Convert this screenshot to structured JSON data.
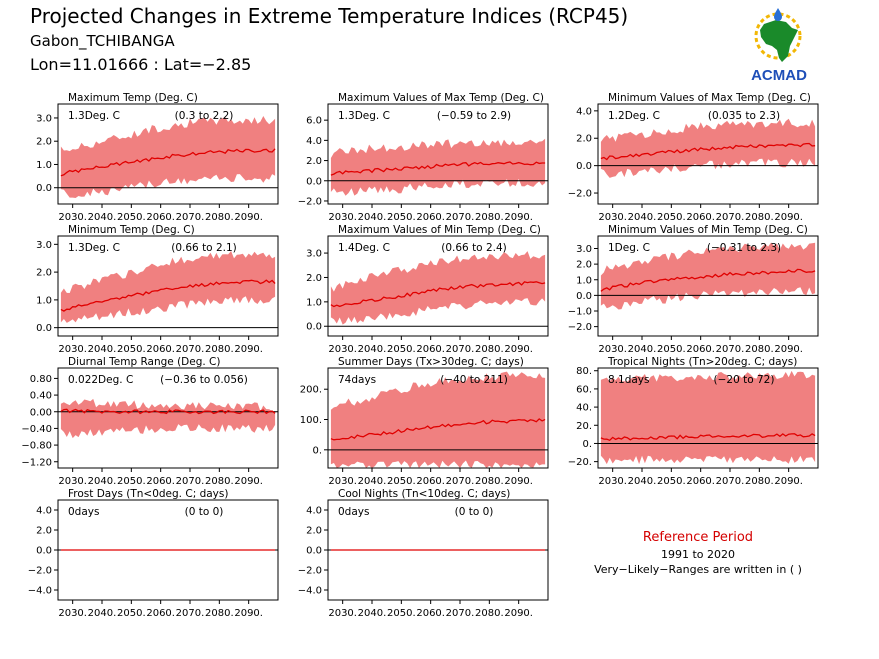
{
  "header": {
    "title": "Projected Changes in Extreme Temperature Indices (RCP45)",
    "location": "Gabon_TCHIBANGA",
    "coords": "Lon=11.01666 : Lat=−2.85"
  },
  "logo": {
    "text": "ACMAD"
  },
  "reference": {
    "title": "Reference Period",
    "years": "1991 to 2020",
    "note": "Very−Likely−Ranges are written in ( )"
  },
  "colors": {
    "band": "#f08080",
    "line": "#e00000"
  },
  "chart_data": [
    {
      "type": "area",
      "title": "Maximum Temp (Deg. C)",
      "value_label": "1.3Deg. C",
      "range_label": "(0.3 to 2.2)",
      "x_ticks": [
        "2030.",
        "2040.",
        "2050.",
        "2060.",
        "2070.",
        "2080.",
        "2090."
      ],
      "y_ticks": [
        "0.0",
        "1.0",
        "2.0",
        "3.0"
      ],
      "y_tick_values": [
        0,
        1,
        2,
        3
      ],
      "ylim": [
        -0.7,
        3.6
      ],
      "xlim": [
        2025,
        2100
      ],
      "anchors": {
        "x": [
          2025,
          2030,
          2040,
          2050,
          2060,
          2070,
          2080,
          2090,
          2100
        ],
        "median": [
          0.55,
          0.7,
          0.9,
          1.1,
          1.3,
          1.45,
          1.55,
          1.6,
          1.6
        ],
        "low": [
          -0.2,
          -0.3,
          -0.2,
          0.0,
          0.2,
          0.3,
          0.4,
          0.4,
          0.4
        ],
        "high": [
          1.6,
          1.7,
          2.0,
          2.3,
          2.6,
          2.8,
          2.9,
          2.9,
          2.9
        ]
      }
    },
    {
      "type": "area",
      "title": "Maximum Values of Max Temp (Deg. C)",
      "value_label": "1.3Deg. C",
      "range_label": "(−0.59 to 2.9)",
      "x_ticks": [
        "2030.",
        "2040.",
        "2050.",
        "2060.",
        "2070.",
        "2080.",
        "2090."
      ],
      "y_ticks": [
        "−2.0",
        "0.0",
        "2.0",
        "4.0",
        "6.0"
      ],
      "y_tick_values": [
        -2,
        0,
        2,
        4,
        6
      ],
      "ylim": [
        -2.3,
        7.6
      ],
      "xlim": [
        2025,
        2100
      ],
      "anchors": {
        "x": [
          2025,
          2030,
          2040,
          2050,
          2060,
          2070,
          2080,
          2090,
          2100
        ],
        "median": [
          0.6,
          0.8,
          1.0,
          1.2,
          1.4,
          1.6,
          1.7,
          1.7,
          1.7
        ],
        "low": [
          -1.0,
          -1.2,
          -1.0,
          -0.8,
          -0.5,
          -0.3,
          -0.2,
          -0.2,
          -0.2
        ],
        "high": [
          2.5,
          3.0,
          3.2,
          3.4,
          3.6,
          3.7,
          3.8,
          3.8,
          3.8
        ]
      }
    },
    {
      "type": "area",
      "title": "Minimum Values of Max Temp (Deg. C)",
      "value_label": "1.2Deg. C",
      "range_label": "(0.035 to 2.3)",
      "x_ticks": [
        "2030.",
        "2040.",
        "2050.",
        "2060.",
        "2070.",
        "2080.",
        "2090."
      ],
      "y_ticks": [
        "−2.0",
        "0.0",
        "2.0",
        "4.0"
      ],
      "y_tick_values": [
        -2,
        0,
        2,
        4
      ],
      "ylim": [
        -2.8,
        4.5
      ],
      "xlim": [
        2025,
        2100
      ],
      "anchors": {
        "x": [
          2025,
          2030,
          2040,
          2050,
          2060,
          2070,
          2080,
          2090,
          2100
        ],
        "median": [
          0.5,
          0.6,
          0.8,
          1.0,
          1.2,
          1.35,
          1.45,
          1.5,
          1.5
        ],
        "low": [
          -0.5,
          -0.6,
          -0.4,
          -0.2,
          0.0,
          0.1,
          0.2,
          0.2,
          0.2
        ],
        "high": [
          1.8,
          2.0,
          2.3,
          2.6,
          2.9,
          3.0,
          3.1,
          3.1,
          3.1
        ]
      }
    },
    {
      "type": "area",
      "title": "Minimum Temp (Deg. C)",
      "value_label": "1.3Deg. C",
      "range_label": "(0.66 to 2.1)",
      "x_ticks": [
        "2030.",
        "2040.",
        "2050.",
        "2060.",
        "2070.",
        "2080.",
        "2090."
      ],
      "y_ticks": [
        "0.0",
        "1.0",
        "2.0",
        "3.0"
      ],
      "y_tick_values": [
        0,
        1,
        2,
        3
      ],
      "ylim": [
        -0.3,
        3.3
      ],
      "xlim": [
        2025,
        2100
      ],
      "anchors": {
        "x": [
          2025,
          2030,
          2040,
          2050,
          2060,
          2070,
          2080,
          2090,
          2100
        ],
        "median": [
          0.6,
          0.75,
          0.95,
          1.15,
          1.35,
          1.5,
          1.6,
          1.65,
          1.65
        ],
        "low": [
          0.2,
          0.25,
          0.4,
          0.55,
          0.7,
          0.85,
          0.95,
          1.0,
          1.0
        ],
        "high": [
          1.2,
          1.4,
          1.7,
          2.0,
          2.3,
          2.5,
          2.6,
          2.6,
          2.6
        ]
      }
    },
    {
      "type": "area",
      "title": "Maximum Values of Min Temp (Deg. C)",
      "value_label": "1.4Deg. C",
      "range_label": "(0.66 to 2.4)",
      "x_ticks": [
        "2030.",
        "2040.",
        "2050.",
        "2060.",
        "2070.",
        "2080.",
        "2090."
      ],
      "y_ticks": [
        "0.0",
        "1.0",
        "2.0",
        "3.0"
      ],
      "y_tick_values": [
        0,
        1,
        2,
        3
      ],
      "ylim": [
        -0.4,
        3.7
      ],
      "xlim": [
        2025,
        2100
      ],
      "anchors": {
        "x": [
          2025,
          2030,
          2040,
          2050,
          2060,
          2070,
          2080,
          2090,
          2100
        ],
        "median": [
          0.8,
          0.9,
          1.05,
          1.25,
          1.45,
          1.6,
          1.7,
          1.75,
          1.75
        ],
        "low": [
          0.2,
          0.2,
          0.35,
          0.5,
          0.7,
          0.85,
          0.95,
          1.0,
          1.0
        ],
        "high": [
          1.5,
          1.7,
          2.0,
          2.3,
          2.6,
          2.8,
          2.9,
          2.9,
          2.9
        ]
      }
    },
    {
      "type": "area",
      "title": "Minimum Values of Min Temp (Deg. C)",
      "value_label": "1Deg. C",
      "range_label": "(−0.31 to 2.3)",
      "x_ticks": [
        "2030.",
        "2040.",
        "2050.",
        "2060.",
        "2070.",
        "2080.",
        "2090."
      ],
      "y_ticks": [
        "−2.0",
        "−1.0",
        "0.0",
        "1.0",
        "2.0",
        "3.0"
      ],
      "y_tick_values": [
        -2,
        -1,
        0,
        1,
        2,
        3
      ],
      "ylim": [
        -2.6,
        3.8
      ],
      "xlim": [
        2025,
        2100
      ],
      "anchors": {
        "x": [
          2025,
          2030,
          2040,
          2050,
          2060,
          2070,
          2080,
          2090,
          2100
        ],
        "median": [
          0.3,
          0.5,
          0.8,
          1.0,
          1.2,
          1.35,
          1.45,
          1.55,
          1.6
        ],
        "low": [
          -0.6,
          -0.7,
          -0.4,
          -0.2,
          0.0,
          0.1,
          0.2,
          0.3,
          0.3
        ],
        "high": [
          1.5,
          1.8,
          2.2,
          2.5,
          2.8,
          3.0,
          3.1,
          3.2,
          3.2
        ]
      }
    },
    {
      "type": "area",
      "title": "Diurnal Temp Range (Deg. C)",
      "value_label": "0.022Deg. C",
      "range_label": "(−0.36 to 0.056)",
      "x_ticks": [
        "2030.",
        "2040.",
        "2050.",
        "2060.",
        "2070.",
        "2080.",
        "2090."
      ],
      "y_ticks": [
        "−1.20",
        "−0.80",
        "−0.40",
        "0.00",
        "0.40",
        "0.80"
      ],
      "y_tick_values": [
        -1.2,
        -0.8,
        -0.4,
        0,
        0.4,
        0.8
      ],
      "ylim": [
        -1.35,
        1.05
      ],
      "xlim": [
        2025,
        2100
      ],
      "anchors": {
        "x": [
          2025,
          2030,
          2040,
          2050,
          2060,
          2070,
          2080,
          2090,
          2100
        ],
        "median": [
          0.02,
          0.02,
          0.0,
          0.0,
          0.0,
          0.0,
          0.0,
          0.0,
          0.0
        ],
        "low": [
          -0.5,
          -0.55,
          -0.5,
          -0.45,
          -0.4,
          -0.4,
          -0.4,
          -0.4,
          -0.4
        ],
        "high": [
          0.25,
          0.25,
          0.2,
          0.18,
          0.15,
          0.15,
          0.12,
          0.12,
          0.12
        ]
      }
    },
    {
      "type": "area",
      "title": "Summer Days (Tx>30deg. C; days)",
      "value_label": "74days",
      "range_label": "(−40 to 211)",
      "x_ticks": [
        "2030.",
        "2040.",
        "2050.",
        "2060.",
        "2070.",
        "2080.",
        "2090."
      ],
      "y_ticks": [
        "0.",
        "100.",
        "200."
      ],
      "y_tick_values": [
        0,
        100,
        200
      ],
      "ylim": [
        -60,
        270
      ],
      "xlim": [
        2025,
        2100
      ],
      "anchors": {
        "x": [
          2025,
          2030,
          2040,
          2050,
          2060,
          2070,
          2080,
          2090,
          2100
        ],
        "median": [
          35,
          40,
          50,
          62,
          75,
          85,
          92,
          96,
          98
        ],
        "low": [
          -45,
          -50,
          -50,
          -50,
          -50,
          -50,
          -50,
          -50,
          -50
        ],
        "high": [
          130,
          150,
          175,
          200,
          220,
          235,
          242,
          245,
          245
        ]
      }
    },
    {
      "type": "area",
      "title": "Tropical Nights (Tn>20deg. C; days)",
      "value_label": "8.1days",
      "range_label": "(−20 to 72)",
      "x_ticks": [
        "2030.",
        "2040.",
        "2050.",
        "2060.",
        "2070.",
        "2080.",
        "2090."
      ],
      "y_ticks": [
        "−20.",
        "0.",
        "20.",
        "40.",
        "60.",
        "80."
      ],
      "y_tick_values": [
        -20,
        0,
        20,
        40,
        60,
        80
      ],
      "ylim": [
        -27,
        83
      ],
      "xlim": [
        2025,
        2100
      ],
      "anchors": {
        "x": [
          2025,
          2030,
          2040,
          2050,
          2060,
          2070,
          2080,
          2090,
          2100
        ],
        "median": [
          5,
          5,
          6,
          7,
          7.5,
          8,
          8.5,
          9,
          9
        ],
        "low": [
          -18,
          -18,
          -18,
          -18,
          -18,
          -18,
          -18,
          -18,
          -18
        ],
        "high": [
          68,
          70,
          72,
          73,
          74,
          74,
          75,
          75,
          75
        ]
      }
    },
    {
      "type": "area",
      "title": "Frost Days (Tn<0deg. C; days)",
      "value_label": "0days",
      "range_label": "(0 to 0)",
      "x_ticks": [
        "2030.",
        "2040.",
        "2050.",
        "2060.",
        "2070.",
        "2080.",
        "2090."
      ],
      "y_ticks": [
        "−4.0",
        "−2.0",
        "0.0",
        "2.0",
        "4.0"
      ],
      "y_tick_values": [
        -4,
        -2,
        0,
        2,
        4
      ],
      "ylim": [
        -5,
        5
      ],
      "xlim": [
        2025,
        2100
      ],
      "anchors": {
        "x": [
          2025,
          2100
        ],
        "median": [
          0,
          0
        ],
        "low": [
          0,
          0
        ],
        "high": [
          0,
          0
        ]
      }
    },
    {
      "type": "area",
      "title": "Cool Nights (Tn<10deg. C; days)",
      "value_label": "0days",
      "range_label": "(0 to 0)",
      "x_ticks": [
        "2030.",
        "2040.",
        "2050.",
        "2060.",
        "2070.",
        "2080.",
        "2090."
      ],
      "y_ticks": [
        "−4.0",
        "−2.0",
        "0.0",
        "2.0",
        "4.0"
      ],
      "y_tick_values": [
        -4,
        -2,
        0,
        2,
        4
      ],
      "ylim": [
        -5,
        5
      ],
      "xlim": [
        2025,
        2100
      ],
      "anchors": {
        "x": [
          2025,
          2100
        ],
        "median": [
          0,
          0
        ],
        "low": [
          0,
          0
        ],
        "high": [
          0,
          0
        ]
      }
    }
  ]
}
